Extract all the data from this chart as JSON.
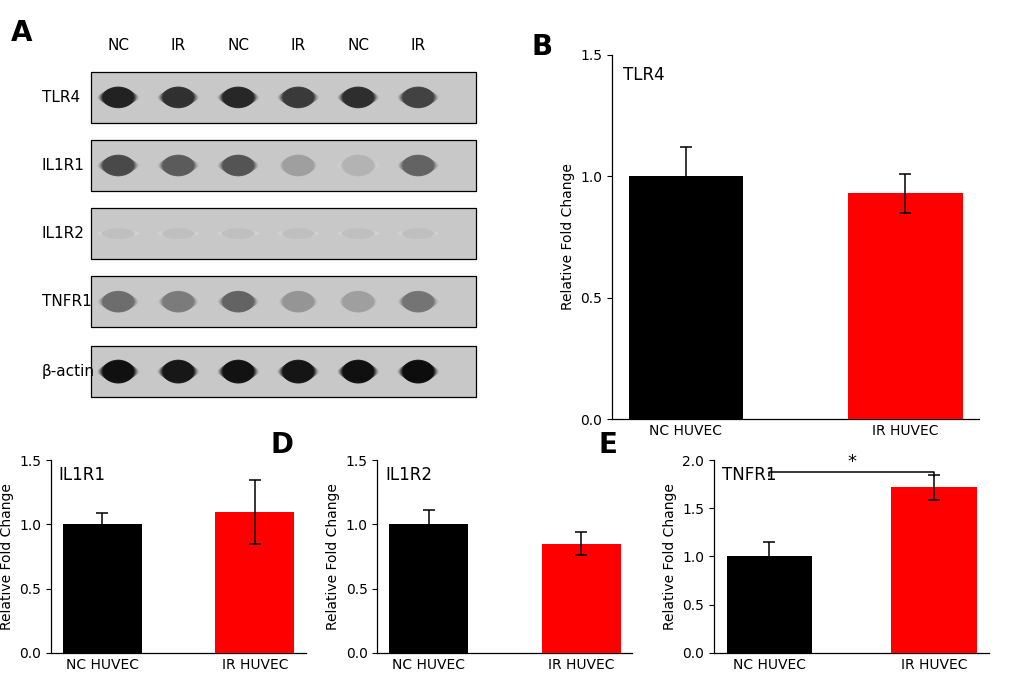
{
  "panel_B": {
    "title": "TLR4",
    "categories": [
      "NC HUVEC",
      "IR HUVEC"
    ],
    "values": [
      1.0,
      0.93
    ],
    "errors": [
      0.12,
      0.08
    ],
    "colors": [
      "#000000",
      "#ff0000"
    ],
    "ylim": [
      0,
      1.5
    ],
    "yticks": [
      0.0,
      0.5,
      1.0,
      1.5
    ],
    "ylabel": "Relative Fold Change"
  },
  "panel_C": {
    "title": "IL1R1",
    "categories": [
      "NC HUVEC",
      "IR HUVEC"
    ],
    "values": [
      1.0,
      1.1
    ],
    "errors": [
      0.09,
      0.25
    ],
    "colors": [
      "#000000",
      "#ff0000"
    ],
    "ylim": [
      0,
      1.5
    ],
    "yticks": [
      0.0,
      0.5,
      1.0,
      1.5
    ],
    "ylabel": "Relative Fold Change"
  },
  "panel_D": {
    "title": "IL1R2",
    "categories": [
      "NC HUVEC",
      "IR HUVEC"
    ],
    "values": [
      1.0,
      0.85
    ],
    "errors": [
      0.11,
      0.09
    ],
    "colors": [
      "#000000",
      "#ff0000"
    ],
    "ylim": [
      0,
      1.5
    ],
    "yticks": [
      0.0,
      0.5,
      1.0,
      1.5
    ],
    "ylabel": "Relative Fold Change"
  },
  "panel_E": {
    "title": "TNFR1",
    "categories": [
      "NC HUVEC",
      "IR HUVEC"
    ],
    "values": [
      1.0,
      1.72
    ],
    "errors": [
      0.15,
      0.13
    ],
    "colors": [
      "#000000",
      "#ff0000"
    ],
    "ylim": [
      0,
      2.0
    ],
    "yticks": [
      0.0,
      0.5,
      1.0,
      1.5,
      2.0
    ],
    "ylabel": "Relative Fold Change",
    "sig_bar": true,
    "sig_text": "*"
  },
  "label_fontsize": 20,
  "tick_fontsize": 10,
  "title_fontsize": 12,
  "ylabel_fontsize": 10,
  "bar_width": 0.52,
  "capsize": 4,
  "lane_labels": [
    "NC",
    "IR",
    "NC",
    "IR",
    "NC",
    "IR"
  ],
  "row_labels": [
    "TLR4",
    "IL1R1",
    "IL1R2",
    "TNFR1",
    "β-actin"
  ],
  "blot_bg_color": "#c8c8c8",
  "band_intensities": {
    "TLR4": [
      0.88,
      0.82,
      0.86,
      0.78,
      0.83,
      0.75
    ],
    "IL1R1": [
      0.72,
      0.65,
      0.68,
      0.38,
      0.3,
      0.62
    ],
    "IL1R2": [
      0.08,
      0.07,
      0.07,
      0.06,
      0.08,
      0.07
    ],
    "TNFR1": [
      0.58,
      0.52,
      0.62,
      0.42,
      0.38,
      0.55
    ],
    "β-actin": [
      0.95,
      0.92,
      0.94,
      0.93,
      0.95,
      0.96
    ]
  }
}
